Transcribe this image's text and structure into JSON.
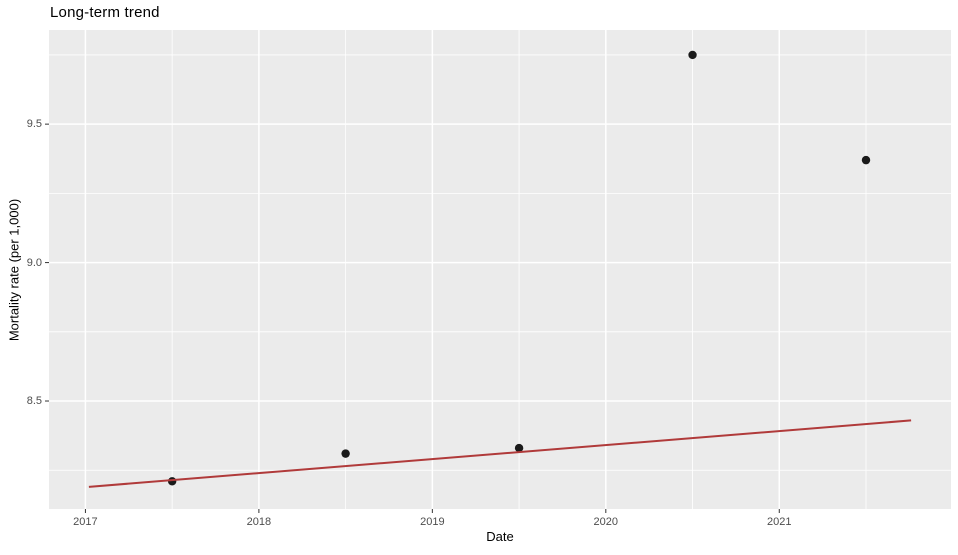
{
  "title": "Long-term trend",
  "colors": {
    "background": "#FFFFFF",
    "panel_background": "#EBEBEB",
    "grid": "#FFFFFF",
    "point": "#1A1A1A",
    "trend_line": "#B03A3A",
    "tick_text": "#4D4D4D",
    "axis_title_text": "#000000",
    "tick_mark": "#333333"
  },
  "chart_data": {
    "type": "scatter",
    "title": "Long-term trend",
    "xlabel": "Date",
    "ylabel": "Mortality rate (per 1,000)",
    "xlim": [
      2016.79,
      2021.99
    ],
    "ylim": [
      8.11,
      9.84
    ],
    "x_major_ticks": [
      2017,
      2018,
      2019,
      2020,
      2021
    ],
    "x_tick_labels": [
      "2017",
      "2018",
      "2019",
      "2020",
      "2021"
    ],
    "x_minor_ticks": [
      2017.5,
      2018.5,
      2019.5,
      2020.5,
      2021.5
    ],
    "y_major_ticks": [
      8.5,
      9.0,
      9.5
    ],
    "y_tick_labels": [
      "8.5",
      "9.0",
      "9.5"
    ],
    "y_minor_ticks": [
      8.25,
      8.75,
      9.25,
      9.75
    ],
    "grid": true,
    "legend_position": "none",
    "series": [
      {
        "name": "observations",
        "type": "point",
        "points": [
          [
            2017.5,
            8.21
          ],
          [
            2018.5,
            8.31
          ],
          [
            2019.5,
            8.33
          ],
          [
            2020.5,
            9.75
          ],
          [
            2021.5,
            9.37
          ]
        ]
      },
      {
        "name": "trend-line",
        "type": "line",
        "points": [
          [
            2017.02,
            8.19
          ],
          [
            2021.76,
            8.43
          ]
        ]
      }
    ]
  }
}
